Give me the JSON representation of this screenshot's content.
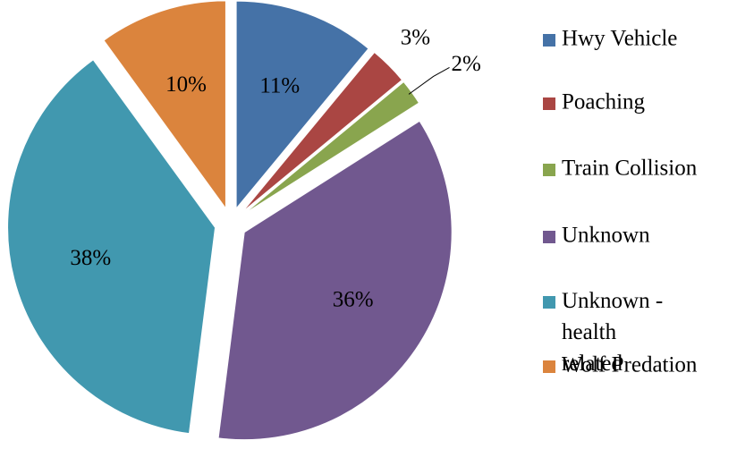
{
  "chart_data": {
    "type": "pie",
    "categories": [
      "Hwy Vehicle",
      "Poaching",
      "Train Collision",
      "Unknown",
      "Unknown - health related",
      "Wolf Predation"
    ],
    "values": [
      11,
      3,
      2,
      36,
      38,
      10
    ],
    "value_labels": [
      "11%",
      "3%",
      "2%",
      "36%",
      "38%",
      "10%"
    ],
    "colors": [
      "#4572a7",
      "#aa4643",
      "#89a54e",
      "#71588f",
      "#4198af",
      "#db843d"
    ],
    "legend": "right"
  }
}
